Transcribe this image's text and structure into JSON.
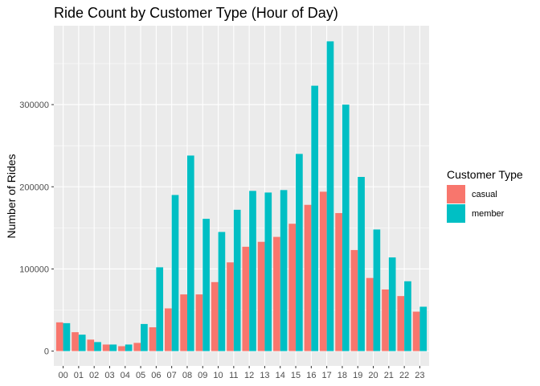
{
  "chart_data": {
    "type": "bar",
    "title": "Ride Count by Customer Type (Hour of Day)",
    "xlabel": "",
    "ylabel": "Number of Rides",
    "categories": [
      "00",
      "01",
      "02",
      "03",
      "04",
      "05",
      "06",
      "07",
      "08",
      "09",
      "10",
      "11",
      "12",
      "13",
      "14",
      "15",
      "16",
      "17",
      "18",
      "19",
      "20",
      "21",
      "22",
      "23"
    ],
    "series": [
      {
        "name": "casual",
        "color": "#F8766D",
        "values": [
          35000,
          23000,
          14000,
          8000,
          6000,
          10000,
          29000,
          52000,
          69000,
          69000,
          84000,
          108000,
          127000,
          133000,
          139000,
          155000,
          178000,
          194000,
          168000,
          123000,
          89000,
          75000,
          67000,
          48000
        ]
      },
      {
        "name": "member",
        "color": "#00BFC4",
        "values": [
          34000,
          20000,
          11000,
          8000,
          8000,
          33000,
          102000,
          190000,
          238000,
          161000,
          145000,
          172000,
          195000,
          193000,
          196000,
          240000,
          323000,
          377000,
          300000,
          212000,
          148000,
          114000,
          85000,
          54000
        ]
      }
    ],
    "yticks": [
      0,
      100000,
      200000,
      300000
    ],
    "ytick_labels": [
      "0",
      "100000",
      "200000",
      "300000"
    ],
    "ylim": [
      -18000,
      396000
    ],
    "grid": true,
    "legend": {
      "title": "Customer Type",
      "position": "right"
    }
  }
}
